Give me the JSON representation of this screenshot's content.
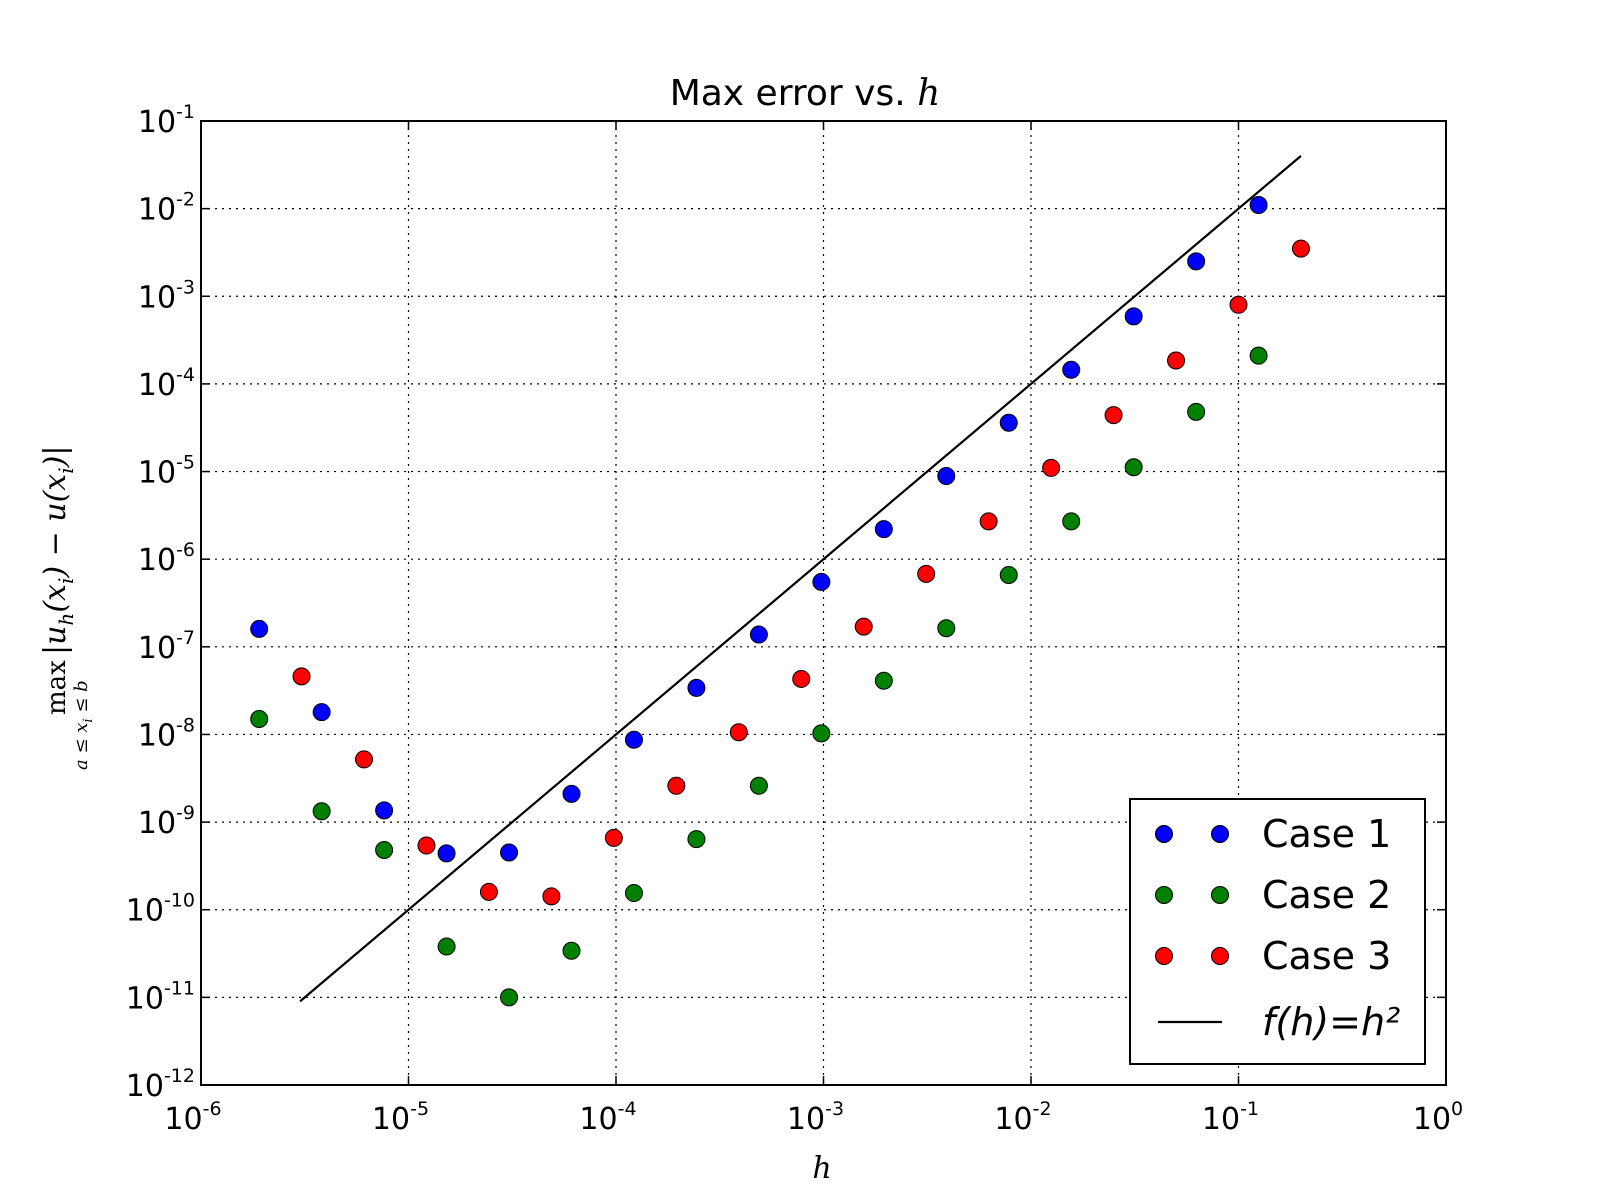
{
  "chart_data": {
    "type": "scatter",
    "title": "Max error vs.",
    "title_math": "h",
    "xlabel": "h",
    "ylabel": "max |u_h(x_i) − u(x_i)|, a ≤ x_i ≤ b",
    "x_scale": "log",
    "y_scale": "log",
    "xlim": [
      1e-06,
      1
    ],
    "ylim": [
      1e-12,
      0.1
    ],
    "grid": true,
    "legend_position": "lower-right",
    "x_ticks": [
      {
        "base": "10",
        "exp": "-6"
      },
      {
        "base": "10",
        "exp": "-5"
      },
      {
        "base": "10",
        "exp": "-4"
      },
      {
        "base": "10",
        "exp": "-3"
      },
      {
        "base": "10",
        "exp": "-2"
      },
      {
        "base": "10",
        "exp": "-1"
      },
      {
        "base": "10",
        "exp": "0"
      }
    ],
    "y_ticks": [
      {
        "base": "10",
        "exp": "-1"
      },
      {
        "base": "10",
        "exp": "-2"
      },
      {
        "base": "10",
        "exp": "-3"
      },
      {
        "base": "10",
        "exp": "-4"
      },
      {
        "base": "10",
        "exp": "-5"
      },
      {
        "base": "10",
        "exp": "-6"
      },
      {
        "base": "10",
        "exp": "-7"
      },
      {
        "base": "10",
        "exp": "-8"
      },
      {
        "base": "10",
        "exp": "-9"
      },
      {
        "base": "10",
        "exp": "-10"
      },
      {
        "base": "10",
        "exp": "-11"
      },
      {
        "base": "10",
        "exp": "-12"
      }
    ],
    "series": [
      {
        "name": "Case 1",
        "color": "#0000ff",
        "marker": "circle",
        "x": [
          0.125,
          0.0625,
          0.03125,
          0.015625,
          0.0078125,
          0.00390625,
          0.001953125,
          0.0009765625,
          0.00048828125,
          0.000244140625,
          0.0001220703125,
          6.103515625e-05,
          3.0517578125e-05,
          1.52587890625e-05,
          7.62939453125e-06,
          3.814697265625e-06,
          1.9073486328125e-06
        ],
        "y": [
          0.011,
          0.0025,
          0.00059,
          0.000145,
          3.6e-05,
          8.9e-06,
          2.2e-06,
          5.5e-07,
          1.38e-07,
          3.4e-08,
          8.7e-09,
          2.1e-09,
          4.5e-10,
          4.4e-10,
          1.36e-09,
          1.8e-08,
          1.6e-07
        ]
      },
      {
        "name": "Case 2",
        "color": "#008000",
        "marker": "circle",
        "x": [
          0.125,
          0.0625,
          0.03125,
          0.015625,
          0.0078125,
          0.00390625,
          0.001953125,
          0.0009765625,
          0.00048828125,
          0.000244140625,
          0.0001220703125,
          6.103515625e-05,
          3.0517578125e-05,
          1.52587890625e-05,
          7.62939453125e-06,
          3.814697265625e-06,
          1.9073486328125e-06
        ],
        "y": [
          0.00021,
          4.8e-05,
          1.12e-05,
          2.7e-06,
          6.6e-07,
          1.63e-07,
          4.1e-08,
          1.03e-08,
          2.6e-09,
          6.4e-10,
          1.55e-10,
          3.4e-11,
          1e-11,
          3.8e-11,
          4.8e-10,
          1.33e-09,
          1.5e-08
        ]
      },
      {
        "name": "Case 3",
        "color": "#ff0000",
        "marker": "circle",
        "x": [
          0.2,
          0.1,
          0.05,
          0.025,
          0.0125,
          0.00625,
          0.003125,
          0.0015625,
          0.00078125,
          0.000390625,
          0.0001953125,
          9.765625e-05,
          4.8828125e-05,
          2.44140625e-05,
          1.220703125e-05,
          6.103515625e-06,
          3.0517578125e-06
        ],
        "y": [
          0.0035,
          0.0008,
          0.000185,
          4.4e-05,
          1.1e-05,
          2.7e-06,
          6.8e-07,
          1.7e-07,
          4.3e-08,
          1.06e-08,
          2.6e-09,
          6.6e-10,
          1.42e-10,
          1.6e-10,
          5.4e-10,
          5.2e-09,
          4.6e-08
        ]
      },
      {
        "name": "f(h)=h²",
        "type": "line",
        "color": "#000000",
        "x": [
          3e-06,
          0.2
        ],
        "y": [
          9e-12,
          0.04
        ]
      }
    ],
    "legend": [
      {
        "label": "Case 1",
        "kind": "marker",
        "color": "#0000ff"
      },
      {
        "label": "Case 2",
        "kind": "marker",
        "color": "#008000"
      },
      {
        "label": "Case 3",
        "kind": "marker",
        "color": "#ff0000"
      },
      {
        "label": "f(h)=h²",
        "kind": "line",
        "color": "#000000"
      }
    ]
  }
}
